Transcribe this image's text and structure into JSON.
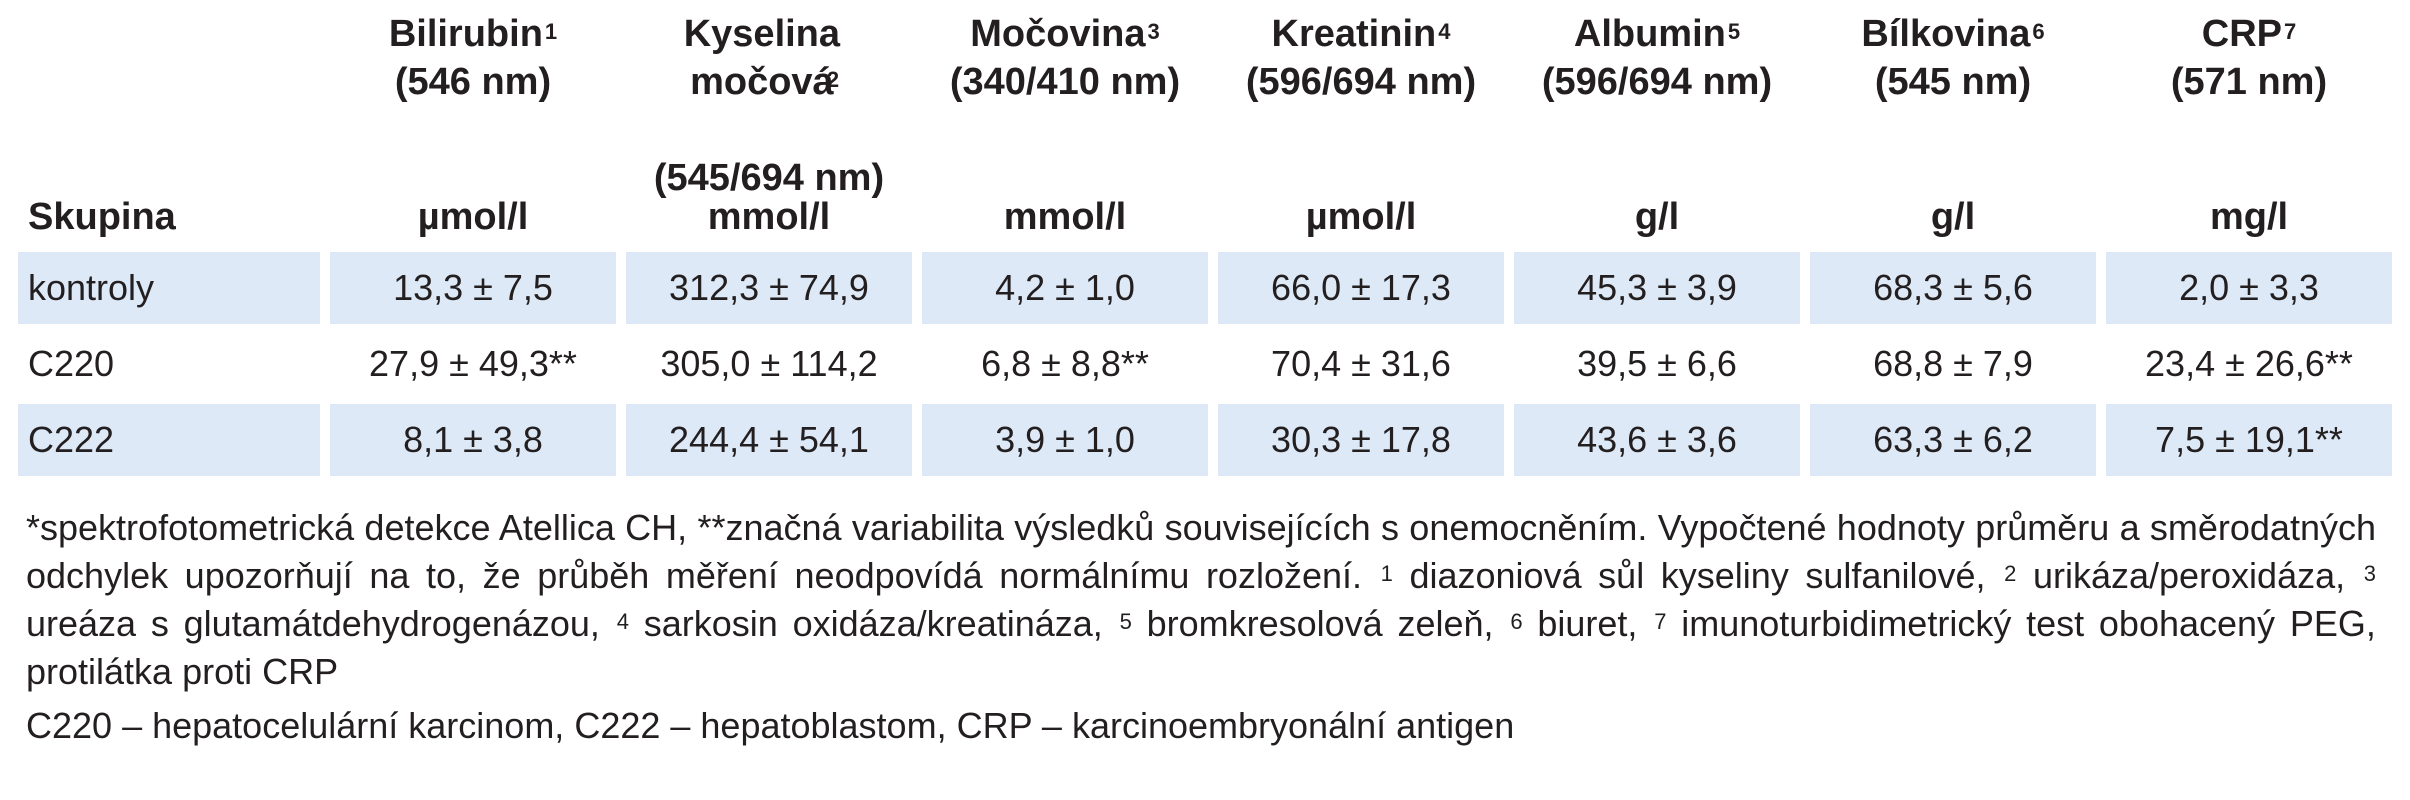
{
  "table": {
    "group_label": "Skupina",
    "columns": [
      {
        "name": "Bilirubin",
        "sup": "1",
        "wavelength": "(546 nm)",
        "unit": "µmol/l"
      },
      {
        "name": "Kyselina močová",
        "sup": "2",
        "wavelength": "(545/694 nm)",
        "unit": "mmol/l"
      },
      {
        "name": "Močovina",
        "sup": "3",
        "wavelength": "(340/410 nm)",
        "unit": "mmol/l"
      },
      {
        "name": "Kreatinin",
        "sup": "4",
        "wavelength": "(596/694 nm)",
        "unit": "µmol/l"
      },
      {
        "name": "Albumin",
        "sup": "5",
        "wavelength": "(596/694 nm)",
        "unit": "g/l"
      },
      {
        "name": "Bílkovina",
        "sup": "6",
        "wavelength": "(545 nm)",
        "unit": "g/l"
      },
      {
        "name": "CRP",
        "sup": "7",
        "wavelength": "(571 nm)",
        "unit": "mg/l"
      }
    ],
    "rows": [
      {
        "group": "kontroly",
        "values": [
          "13,3 ± 7,5",
          "312,3 ± 74,9",
          "4,2 ± 1,0",
          "66,0 ± 17,3",
          "45,3 ± 3,9",
          "68,3 ± 5,6",
          "2,0 ± 3,3"
        ]
      },
      {
        "group": "C220",
        "values": [
          "27,9 ± 49,3**",
          "305,0 ± 114,2",
          "6,8 ± 8,8**",
          "70,4 ± 31,6",
          "39,5 ± 6,6",
          "68,8 ± 7,9",
          "23,4 ± 26,6**"
        ]
      },
      {
        "group": "C222",
        "values": [
          "8,1 ± 3,8",
          "244,4 ± 54,1",
          "3,9 ± 1,0",
          "30,3 ± 17,8",
          "43,6 ± 3,6",
          "63,3 ± 6,2",
          "7,5 ± 19,1**"
        ]
      }
    ],
    "row_shading": [
      "#dde9f6",
      "#ffffff",
      "#dde9f6"
    ]
  },
  "notes": {
    "main_prefix": "*spektrofotometrická detekce Atellica CH, **značná variabilita výsledků souvisejících s onemocněním. Vypočtené hodnoty průměru a směrodatných odchylek upozorňují na to, že průběh měření neodpovídá normálnímu rozložení.",
    "footnotes": [
      {
        "sup": "1",
        "text": "diazoniová sůl kyseliny sulfanilové,"
      },
      {
        "sup": "2",
        "text": "urikáza/peroxidáza,"
      },
      {
        "sup": "3",
        "text": "ureáza s glutamátdehydrogenázou,"
      },
      {
        "sup": "4",
        "text": "sarkosin oxidáza/kreatináza,"
      },
      {
        "sup": "5",
        "text": "bromkresolová zeleň,"
      },
      {
        "sup": "6",
        "text": "biuret,"
      },
      {
        "sup": "7",
        "text": "imunoturbidimetrický test obohacený PEG, protilátka proti CRP"
      }
    ],
    "abbreviations": "C220 – hepatocelulární karcinom, C222 – hepatoblastom, CRP – karcinoembryonální antigen"
  }
}
